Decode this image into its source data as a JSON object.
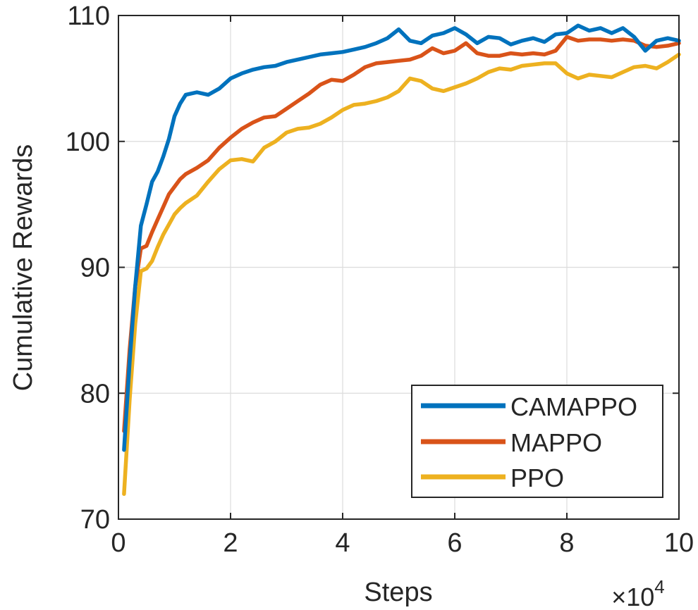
{
  "chart_data": {
    "type": "line",
    "xlabel": "Steps",
    "ylabel": "Cumulative Rewards",
    "x_multiplier_label": "×10",
    "x_multiplier_exp": "4",
    "xlim": [
      0,
      10
    ],
    "ylim": [
      70,
      110
    ],
    "xticks": [
      0,
      2,
      4,
      6,
      8,
      10
    ],
    "yticks": [
      70,
      80,
      90,
      100,
      110
    ],
    "grid": true,
    "legend_position": "lower-right",
    "x": [
      0.1,
      0.2,
      0.3,
      0.4,
      0.5,
      0.6,
      0.7,
      0.8,
      0.9,
      1.0,
      1.1,
      1.2,
      1.4,
      1.6,
      1.8,
      2.0,
      2.2,
      2.4,
      2.6,
      2.8,
      3.0,
      3.2,
      3.4,
      3.6,
      3.8,
      4.0,
      4.2,
      4.4,
      4.6,
      4.8,
      5.0,
      5.2,
      5.4,
      5.6,
      5.8,
      6.0,
      6.2,
      6.4,
      6.6,
      6.8,
      7.0,
      7.2,
      7.4,
      7.6,
      7.8,
      8.0,
      8.2,
      8.4,
      8.6,
      8.8,
      9.0,
      9.2,
      9.4,
      9.6,
      9.8,
      10.0
    ],
    "series": [
      {
        "name": "CAMAPPO",
        "color": "#0072BD",
        "values": [
          75.5,
          82.5,
          88.5,
          93.3,
          95.0,
          96.8,
          97.6,
          98.8,
          100.2,
          102.0,
          103.0,
          103.7,
          103.9,
          103.7,
          104.2,
          105.0,
          105.4,
          105.7,
          105.9,
          106.0,
          106.3,
          106.5,
          106.7,
          106.9,
          107.0,
          107.1,
          107.3,
          107.5,
          107.8,
          108.2,
          108.9,
          108.0,
          107.8,
          108.4,
          108.6,
          109.0,
          108.5,
          107.8,
          108.3,
          108.2,
          107.7,
          108.0,
          108.2,
          107.9,
          108.5,
          108.6,
          109.2,
          108.8,
          109.0,
          108.6,
          109.0,
          108.3,
          107.2,
          108.0,
          108.2,
          108.0
        ]
      },
      {
        "name": "MAPPO",
        "color": "#D95319",
        "values": [
          77.0,
          83.5,
          88.5,
          91.5,
          91.7,
          92.8,
          93.8,
          94.8,
          95.8,
          96.4,
          97.0,
          97.4,
          97.9,
          98.5,
          99.5,
          100.3,
          101.0,
          101.5,
          101.9,
          102.0,
          102.6,
          103.2,
          103.8,
          104.5,
          104.9,
          104.8,
          105.3,
          105.9,
          106.2,
          106.3,
          106.4,
          106.5,
          106.8,
          107.4,
          107.0,
          107.2,
          107.8,
          107.0,
          106.8,
          106.8,
          107.0,
          106.9,
          107.0,
          106.9,
          107.2,
          108.3,
          108.0,
          108.1,
          108.1,
          108.0,
          108.1,
          108.0,
          107.6,
          107.5,
          107.6,
          107.8
        ]
      },
      {
        "name": "PPO",
        "color": "#EDB120",
        "values": [
          72.0,
          79.5,
          85.5,
          89.7,
          89.9,
          90.5,
          91.6,
          92.6,
          93.4,
          94.2,
          94.7,
          95.1,
          95.7,
          96.8,
          97.8,
          98.5,
          98.6,
          98.4,
          99.5,
          100.0,
          100.7,
          101.0,
          101.1,
          101.4,
          101.9,
          102.5,
          102.9,
          103.0,
          103.2,
          103.5,
          104.0,
          105.0,
          104.8,
          104.2,
          104.0,
          104.3,
          104.6,
          105.0,
          105.5,
          105.8,
          105.7,
          106.0,
          106.1,
          106.2,
          106.2,
          105.4,
          105.0,
          105.3,
          105.2,
          105.1,
          105.5,
          105.9,
          106.0,
          105.8,
          106.3,
          106.9
        ]
      }
    ]
  }
}
